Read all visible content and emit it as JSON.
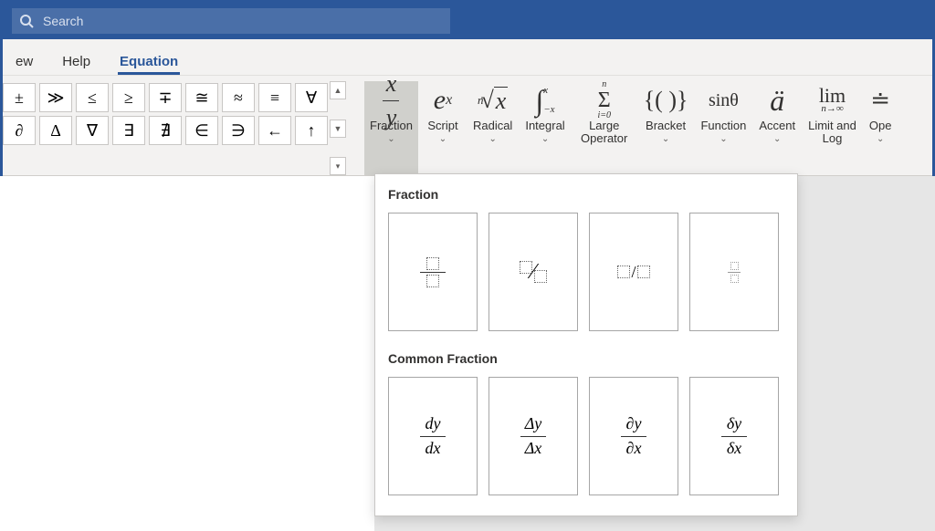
{
  "titlebar": {
    "search_placeholder": "Search"
  },
  "tabs": {
    "view": "ew",
    "help": "Help",
    "equation": "Equation"
  },
  "symbols": {
    "row1": [
      "±",
      "≫",
      "≤",
      "≥",
      "∓",
      "≅",
      "≈",
      "≡",
      "∀"
    ],
    "row2": [
      "∂",
      "Δ",
      "∇",
      "∃",
      "∄",
      "∈",
      "∋",
      "←",
      "↑"
    ]
  },
  "structures": {
    "fraction": "Fraction",
    "script": "Script",
    "radical": "Radical",
    "integral": "Integral",
    "large_operator": "Large\nOperator",
    "bracket": "Bracket",
    "function": "Function",
    "accent": "Accent",
    "limit_log": "Limit and\nLog",
    "operator": "Ope"
  },
  "dropdown": {
    "section1": "Fraction",
    "section2": "Common Fraction",
    "common": [
      {
        "num": "dy",
        "den": "dx"
      },
      {
        "num": "Δy",
        "den": "Δx"
      },
      {
        "num": "∂y",
        "den": "∂x"
      },
      {
        "num": "δy",
        "den": "δx"
      }
    ]
  },
  "colors": {
    "brand": "#2b579a",
    "ribbon_bg": "#f3f2f1",
    "border": "#c8c6c4"
  }
}
